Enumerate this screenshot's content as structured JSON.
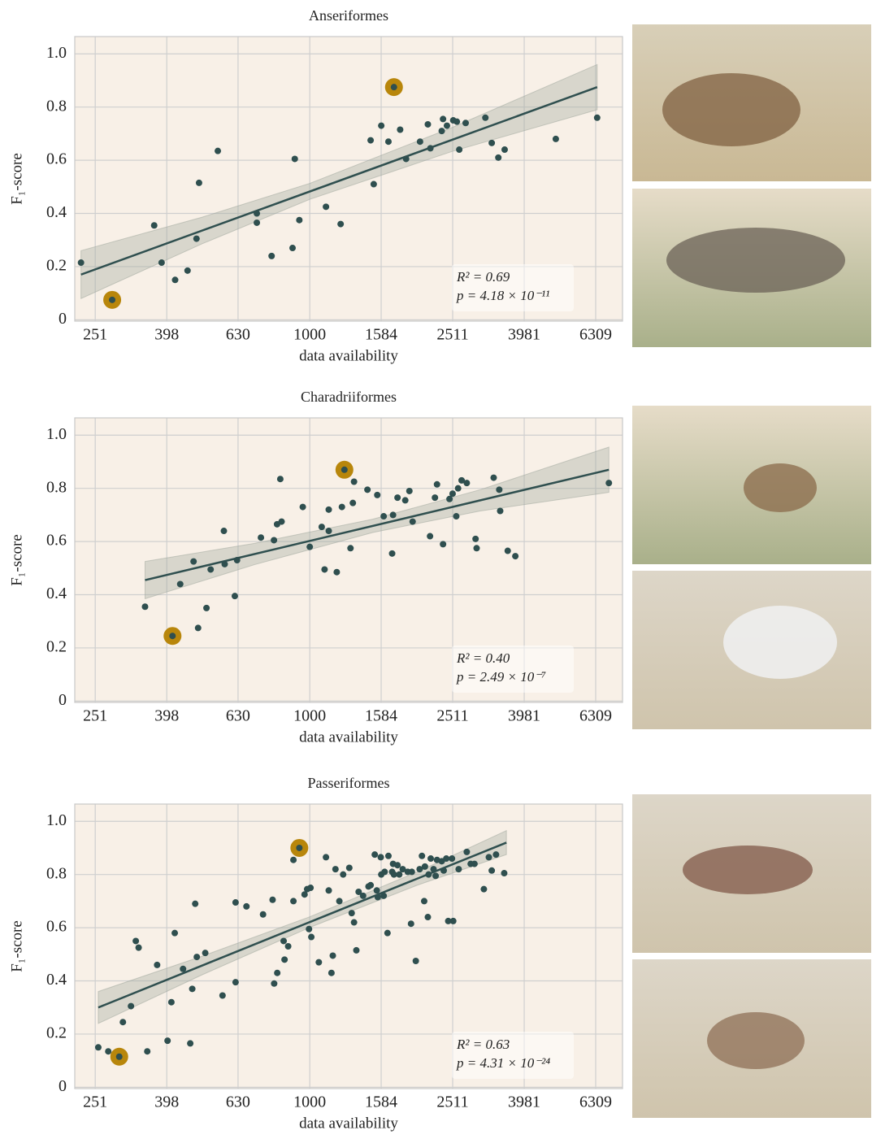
{
  "chart_data": [
    {
      "type": "scatter",
      "title": "Anseriformes",
      "xlabel": "data availability",
      "ylabel": "F₁-score",
      "xscale": "log",
      "grid": true,
      "color": "#2f4f4f",
      "highlight_color": "#b8860b",
      "highlight_indices": [
        1,
        21
      ],
      "xlim": [
        220,
        7500
      ],
      "ylim": [
        -0.005,
        1.065
      ],
      "xticks": [
        251,
        398,
        630,
        1000,
        1584,
        2511,
        3981,
        6309
      ],
      "yticks": [
        0,
        0.2,
        0.4,
        0.6,
        0.8,
        {
          "value": 1,
          "label": "1.0"
        }
      ],
      "x": [
        229,
        280,
        367,
        385,
        420,
        455,
        482,
        490,
        553,
        711,
        711,
        782,
        895,
        908,
        935,
        1110,
        1220,
        1480,
        1510,
        1585,
        1660,
        1720,
        1790,
        1860,
        2035,
        2140,
        2175,
        2340,
        2360,
        2420,
        2520,
        2580,
        2620,
        2730,
        3100,
        3230,
        3370,
        3510,
        4880,
        6370
      ],
      "values": [
        0.215,
        0.075,
        0.355,
        0.215,
        0.15,
        0.185,
        0.305,
        0.515,
        0.635,
        0.4,
        0.365,
        0.24,
        0.27,
        0.605,
        0.375,
        0.425,
        0.36,
        0.675,
        0.51,
        0.73,
        0.67,
        0.875,
        0.715,
        0.605,
        0.67,
        0.735,
        0.645,
        0.71,
        0.755,
        0.73,
        0.75,
        0.745,
        0.64,
        0.74,
        0.76,
        0.665,
        0.61,
        0.64,
        0.68,
        0.76
      ],
      "fit": {
        "x": [
          229,
          6370
        ],
        "y": [
          0.17,
          0.875
        ]
      },
      "band": {
        "x": [
          229,
          500,
          1000,
          2500,
          6370
        ],
        "lower": [
          0.08,
          0.286,
          0.453,
          0.633,
          0.79
        ],
        "upper": [
          0.26,
          0.386,
          0.513,
          0.723,
          0.96
        ]
      },
      "annotation": [
        "R² = 0.69",
        "p = 4.18 × 10⁻¹¹"
      ]
    },
    {
      "type": "scatter",
      "title": "Charadriiformes",
      "xlabel": "data availability",
      "ylabel": "F₁-score",
      "xscale": "log",
      "grid": true,
      "color": "#2f4f4f",
      "highlight_color": "#b8860b",
      "highlight_indices": [
        1,
        24
      ],
      "xlim": [
        220,
        7500
      ],
      "ylim": [
        -0.005,
        1.065
      ],
      "xticks": [
        251,
        398,
        630,
        1000,
        1584,
        2511,
        3981,
        6309
      ],
      "yticks": [
        0,
        0.2,
        0.4,
        0.6,
        0.8,
        {
          "value": 1,
          "label": "1.0"
        }
      ],
      "x": [
        346,
        413,
        434,
        473,
        487,
        514,
        528,
        575,
        578,
        617,
        626,
        730,
        794,
        810,
        827,
        834,
        956,
        1000,
        1080,
        1100,
        1130,
        1130,
        1190,
        1230,
        1250,
        1300,
        1330,
        1320,
        1450,
        1545,
        1610,
        1700,
        1710,
        1760,
        1850,
        1900,
        1940,
        2170,
        2240,
        2270,
        2360,
        2460,
        2510,
        2570,
        2600,
        2660,
        2750,
        2910,
        2930,
        3270,
        3390,
        3410,
        3580,
        3760,
        6870
      ],
      "values": [
        0.355,
        0.245,
        0.44,
        0.525,
        0.275,
        0.35,
        0.495,
        0.64,
        0.515,
        0.395,
        0.53,
        0.615,
        0.605,
        0.665,
        0.835,
        0.675,
        0.73,
        0.58,
        0.655,
        0.495,
        0.72,
        0.64,
        0.485,
        0.73,
        0.87,
        0.575,
        0.825,
        0.745,
        0.795,
        0.775,
        0.695,
        0.555,
        0.7,
        0.765,
        0.755,
        0.79,
        0.675,
        0.62,
        0.765,
        0.815,
        0.59,
        0.76,
        0.78,
        0.695,
        0.8,
        0.83,
        0.82,
        0.61,
        0.575,
        0.84,
        0.795,
        0.715,
        0.565,
        0.545,
        0.82
      ],
      "fit": {
        "x": [
          346,
          6870
        ],
        "y": [
          0.455,
          0.87
        ]
      },
      "band": {
        "x": [
          346,
          700,
          1500,
          3000,
          6870
        ],
        "lower": [
          0.385,
          0.513,
          0.634,
          0.715,
          0.785
        ],
        "upper": [
          0.525,
          0.593,
          0.684,
          0.795,
          0.955
        ]
      },
      "annotation": [
        "R² = 0.40",
        "p = 2.49 × 10⁻⁷"
      ]
    },
    {
      "type": "scatter",
      "title": "Passeriformes",
      "xlabel": "data availability",
      "ylabel": "F₁-score",
      "xscale": "log",
      "grid": true,
      "color": "#2f4f4f",
      "highlight_color": "#b8860b",
      "highlight_indices": [
        2,
        31
      ],
      "xlim": [
        220,
        7500
      ],
      "ylim": [
        -0.005,
        1.065
      ],
      "xticks": [
        251,
        398,
        630,
        1000,
        1584,
        2511,
        3981,
        6309
      ],
      "yticks": [
        0,
        0.2,
        0.4,
        0.6,
        0.8,
        {
          "value": 1,
          "label": "1.0"
        }
      ],
      "x": [
        256,
        273,
        293,
        300,
        316,
        326,
        332,
        351,
        374,
        400,
        410,
        419,
        442,
        463,
        469,
        478,
        483,
        510,
        570,
        620,
        620,
        665,
        740,
        787,
        795,
        811,
        845,
        850,
        870,
        900,
        900,
        935,
        967,
        983,
        995,
        1005,
        1010,
        1060,
        1110,
        1130,
        1150,
        1160,
        1180,
        1210,
        1240,
        1290,
        1310,
        1330,
        1350,
        1370,
        1410,
        1460,
        1480,
        1520,
        1540,
        1550,
        1580,
        1585,
        1610,
        1620,
        1650,
        1660,
        1700,
        1710,
        1720,
        1760,
        1780,
        1820,
        1880,
        1920,
        1930,
        1980,
        2030,
        2060,
        2090,
        2100,
        2140,
        2150,
        2180,
        2220,
        2250,
        2270,
        2340,
        2370,
        2410,
        2440,
        2500,
        2520,
        2610,
        2750,
        2820,
        2890,
        3070,
        3170,
        3230,
        3320,
        3500
      ],
      "values": [
        0.15,
        0.135,
        0.115,
        0.245,
        0.305,
        0.55,
        0.525,
        0.135,
        0.46,
        0.175,
        0.32,
        0.58,
        0.445,
        0.165,
        0.37,
        0.69,
        0.49,
        0.505,
        0.345,
        0.695,
        0.395,
        0.68,
        0.65,
        0.705,
        0.39,
        0.43,
        0.55,
        0.48,
        0.53,
        0.7,
        0.855,
        0.9,
        0.725,
        0.745,
        0.595,
        0.75,
        0.565,
        0.47,
        0.865,
        0.74,
        0.43,
        0.495,
        0.82,
        0.7,
        0.8,
        0.825,
        0.655,
        0.62,
        0.515,
        0.735,
        0.72,
        0.755,
        0.76,
        0.875,
        0.74,
        0.715,
        0.865,
        0.8,
        0.72,
        0.81,
        0.58,
        0.87,
        0.81,
        0.84,
        0.8,
        0.835,
        0.8,
        0.82,
        0.81,
        0.615,
        0.81,
        0.475,
        0.82,
        0.87,
        0.7,
        0.83,
        0.64,
        0.8,
        0.86,
        0.82,
        0.795,
        0.855,
        0.85,
        0.815,
        0.86,
        0.625,
        0.86,
        0.625,
        0.82,
        0.885,
        0.84,
        0.84,
        0.745,
        0.865,
        0.815,
        0.875,
        0.805
      ],
      "fit": {
        "x": [
          256,
          3550
        ],
        "y": [
          0.3,
          0.92
        ]
      },
      "band": {
        "x": [
          256,
          500,
          1000,
          2000,
          3550
        ],
        "lower": [
          0.24,
          0.423,
          0.601,
          0.76,
          0.875
        ],
        "upper": [
          0.36,
          0.493,
          0.641,
          0.81,
          0.965
        ]
      },
      "annotation": [
        "R² = 0.63",
        "p = 4.31 × 10⁻²⁴"
      ]
    }
  ]
}
